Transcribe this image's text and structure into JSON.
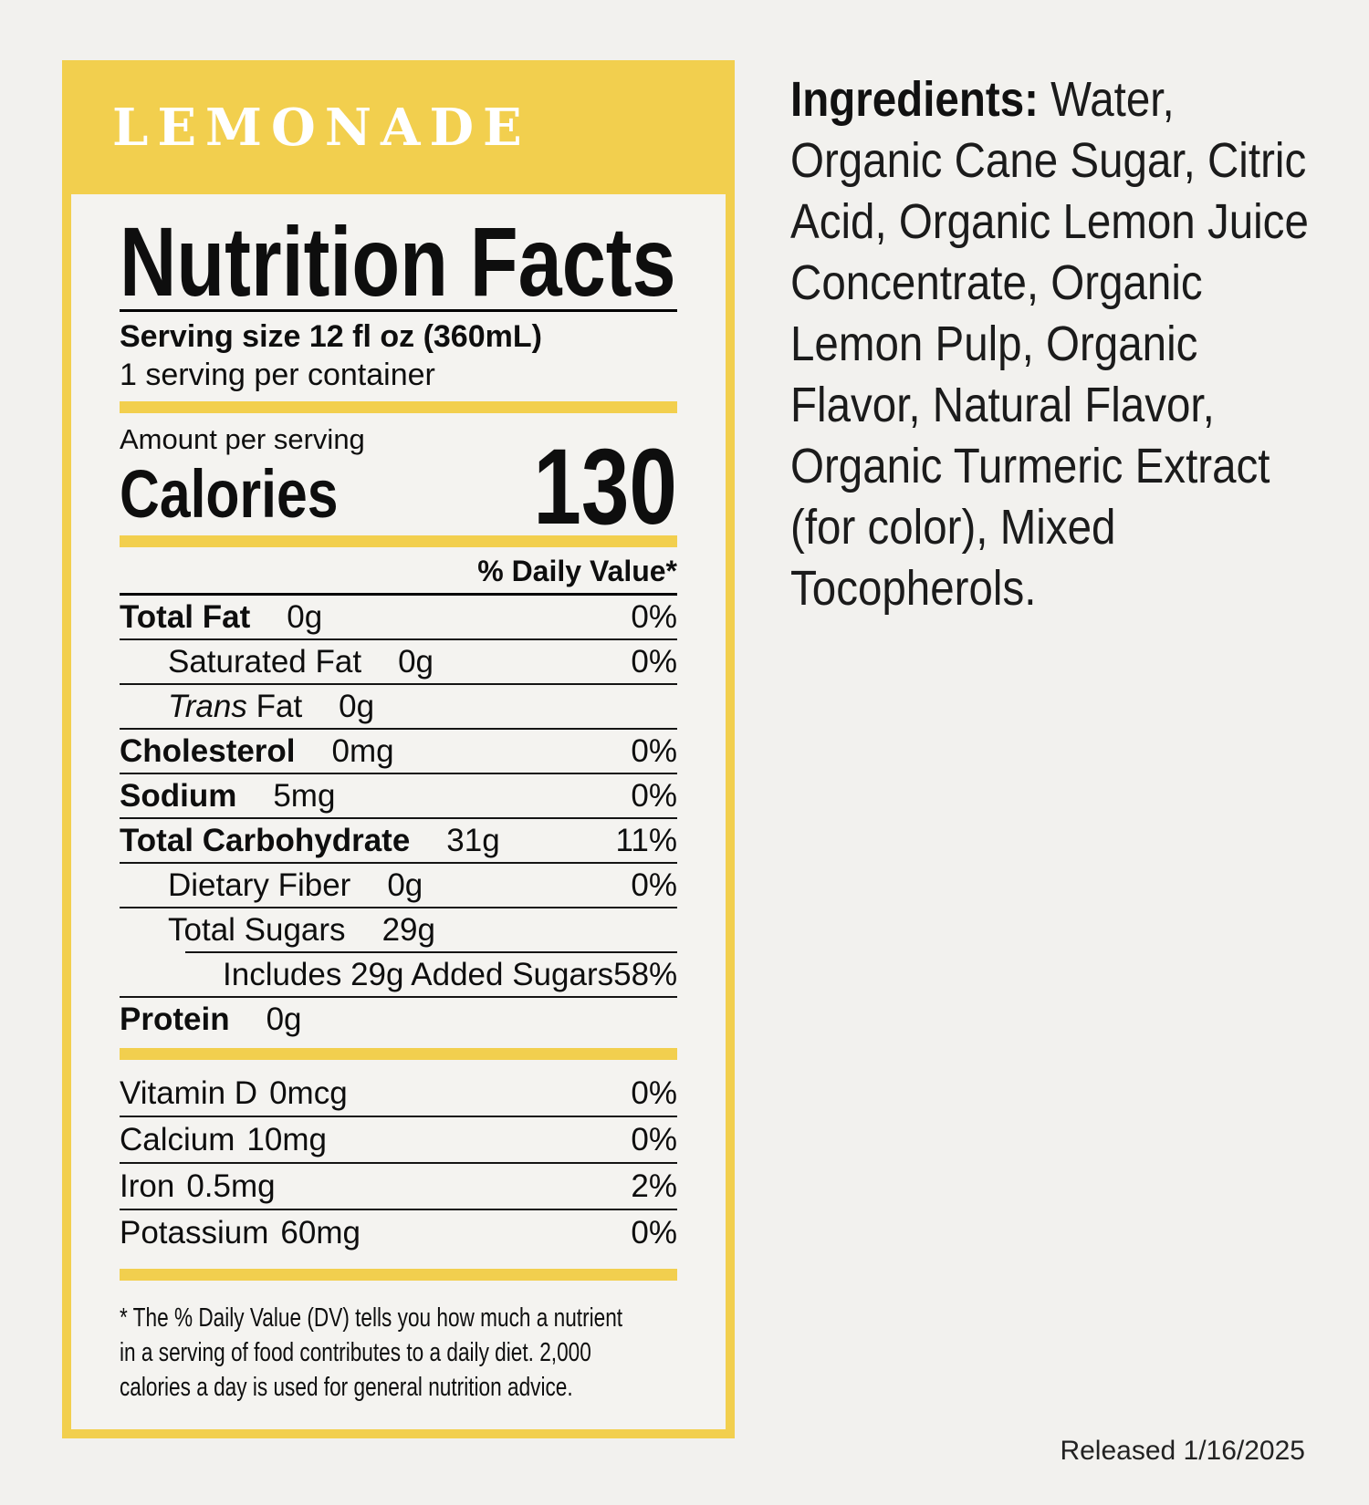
{
  "colors": {
    "yellow": "#f2cf4e",
    "page_background": "#f2f1ee",
    "panel_background": "#f4f3f0",
    "text": "#0e0e0e",
    "header_text": "#ffffff"
  },
  "header": {
    "product_name": "LEMONADE"
  },
  "panel": {
    "title": "Nutrition Facts",
    "serving_size": "Serving size 12 fl oz (360mL)",
    "servings_per_container": "1 serving per container",
    "amount_per_serving": "Amount per serving",
    "calories_label": "Calories",
    "calories_value": "130",
    "daily_value_header": "% Daily Value*",
    "rows": [
      {
        "label": "Total Fat",
        "amount": "0g",
        "dv": "0%",
        "bold": true,
        "indent": 0,
        "border": "full"
      },
      {
        "label": "Saturated Fat",
        "amount": "0g",
        "dv": "0%",
        "bold": false,
        "indent": 1,
        "border": "full"
      },
      {
        "label_italic": "Trans",
        "label": " Fat",
        "amount": "0g",
        "dv": "",
        "bold": false,
        "indent": 1,
        "border": "full"
      },
      {
        "label": "Cholesterol",
        "amount": "0mg",
        "dv": "0%",
        "bold": true,
        "indent": 0,
        "border": "full"
      },
      {
        "label": "Sodium",
        "amount": "5mg",
        "dv": "0%",
        "bold": true,
        "indent": 0,
        "border": "full"
      },
      {
        "label": "Total Carbohydrate",
        "amount": "31g",
        "dv": "11%",
        "bold": true,
        "indent": 0,
        "border": "full"
      },
      {
        "label": "Dietary Fiber",
        "amount": "0g",
        "dv": "0%",
        "bold": false,
        "indent": 1,
        "border": "full"
      },
      {
        "label": "Total Sugars",
        "amount": "29g",
        "dv": "",
        "bold": false,
        "indent": 1,
        "border": "indent"
      },
      {
        "label": "Includes 29g Added Sugars",
        "amount": "",
        "dv": "58%",
        "bold": false,
        "indent": 2,
        "border": "full"
      },
      {
        "label": "Protein",
        "amount": "0g",
        "dv": "",
        "bold": true,
        "indent": 0,
        "border": "none"
      }
    ],
    "vitamins": [
      {
        "label": "Vitamin D",
        "amount": "0mcg",
        "dv": "0%"
      },
      {
        "label": "Calcium",
        "amount": "10mg",
        "dv": "0%"
      },
      {
        "label": "Iron",
        "amount": "0.5mg",
        "dv": "2%"
      },
      {
        "label": "Potassium",
        "amount": "60mg",
        "dv": "0%"
      }
    ],
    "footnote_lines": [
      "* The % Daily Value (DV) tells you how much a nutrient",
      "in a serving of food contributes to a daily diet. 2,000",
      "calories a day is used for general nutrition advice."
    ]
  },
  "ingredients": {
    "label": "Ingredients:",
    "lines": [
      " Water,",
      "Organic Cane Sugar, Citric",
      "Acid, Organic Lemon Juice",
      "Concentrate, Organic",
      "Lemon Pulp, Organic",
      "Flavor, Natural Flavor,",
      "Organic Turmeric Extract",
      "(for color), Mixed",
      "Tocopherols."
    ]
  },
  "released": "Released 1/16/2025"
}
